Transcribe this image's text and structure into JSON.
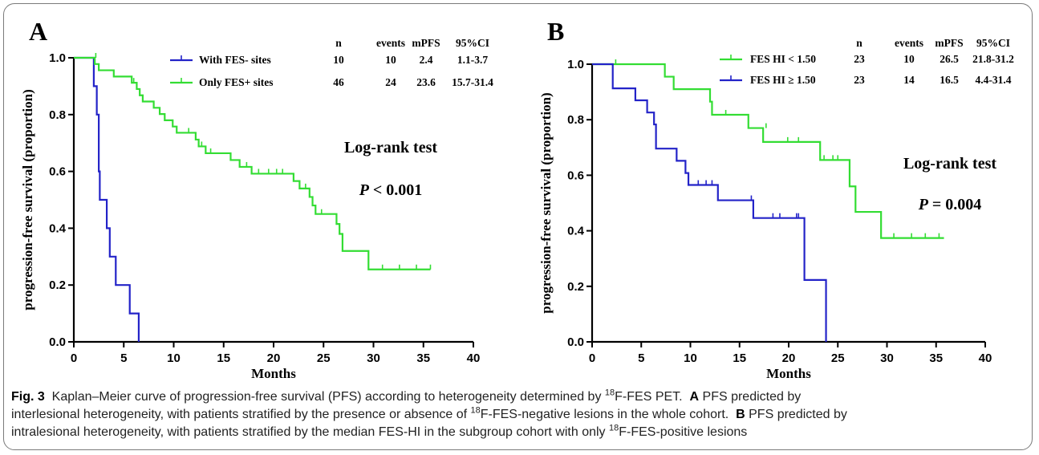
{
  "caption": {
    "fig_label": "Fig. 3",
    "line1_a": "Kaplan–Meier curve of progression-free survival (PFS) according to heterogeneity determined by ",
    "sup_18": "18",
    "line1_b": "F-FES PET.",
    "panel_a_label": "A",
    "line1_c": "PFS predicted by",
    "line2_a": "interlesional heterogeneity, with patients stratified by the presence or absence of ",
    "line2_b": "F-FES-negative lesions in the whole cohort.",
    "panel_b_label": "B",
    "line2_c": "PFS predicted by",
    "line3_a": "intralesional heterogeneity, with patients stratified by the median FES-HI in the subgroup cohort with only ",
    "line3_b": "F-FES-positive lesions"
  },
  "chart_data": [
    {
      "type": "line",
      "panel_label": "A",
      "xlabel": "Months",
      "ylabel": "progression-free survival (proportion)",
      "xlim": [
        0,
        40
      ],
      "ylim": [
        0,
        1.0
      ],
      "x_ticks": [
        "0",
        "5",
        "10",
        "15",
        "20",
        "25",
        "30",
        "35",
        "40"
      ],
      "y_ticks": [
        "0.0",
        "0.2",
        "0.4",
        "0.6",
        "0.8",
        "1.0"
      ],
      "legend_headers": [
        "n",
        "events",
        "mPFS",
        "95%CI"
      ],
      "annotation": "Log-rank test",
      "p_symbol": "P",
      "p_rest": " < 0.001",
      "series": [
        {
          "name": "With FES- sites",
          "color": "#2323c8",
          "stats": [
            "10",
            "10",
            "2.4",
            "1.1-3.7"
          ],
          "steps": [
            [
              0,
              1.0
            ],
            [
              2.0,
              0.9
            ],
            [
              2.3,
              0.8
            ],
            [
              2.5,
              0.6
            ],
            [
              2.6,
              0.5
            ],
            [
              3.3,
              0.4
            ],
            [
              3.6,
              0.3
            ],
            [
              4.2,
              0.2
            ],
            [
              5.6,
              0.1
            ],
            [
              6.5,
              0.0
            ]
          ],
          "end": 6.5,
          "censors": []
        },
        {
          "name": "Only FES+ sites",
          "color": "#33dd33",
          "stats": [
            "46",
            "24",
            "23.6",
            "15.7-31.4"
          ],
          "steps": [
            [
              0,
              1.0
            ],
            [
              2.1,
              0.978
            ],
            [
              2.5,
              0.956
            ],
            [
              4.0,
              0.934
            ],
            [
              5.8,
              0.912
            ],
            [
              6.3,
              0.89
            ],
            [
              6.6,
              0.868
            ],
            [
              6.9,
              0.846
            ],
            [
              8.0,
              0.824
            ],
            [
              8.6,
              0.802
            ],
            [
              9.1,
              0.78
            ],
            [
              9.9,
              0.758
            ],
            [
              10.3,
              0.736
            ],
            [
              12.2,
              0.712
            ],
            [
              12.5,
              0.688
            ],
            [
              13.2,
              0.664
            ],
            [
              15.7,
              0.64
            ],
            [
              16.6,
              0.616
            ],
            [
              17.8,
              0.592
            ],
            [
              22.0,
              0.566
            ],
            [
              22.6,
              0.54
            ],
            [
              23.6,
              0.51
            ],
            [
              23.9,
              0.48
            ],
            [
              24.2,
              0.45
            ],
            [
              26.3,
              0.415
            ],
            [
              26.6,
              0.38
            ],
            [
              26.9,
              0.32
            ],
            [
              29.5,
              0.255
            ]
          ],
          "end": 35.7,
          "censors": [
            [
              2.2,
              1.0
            ],
            [
              6.0,
              0.912
            ],
            [
              11.5,
              0.736
            ],
            [
              12.8,
              0.688
            ],
            [
              13.7,
              0.664
            ],
            [
              17.3,
              0.616
            ],
            [
              18.5,
              0.592
            ],
            [
              19.5,
              0.592
            ],
            [
              20.3,
              0.592
            ],
            [
              20.9,
              0.592
            ],
            [
              23.2,
              0.54
            ],
            [
              24.8,
              0.45
            ],
            [
              30.9,
              0.255
            ],
            [
              32.6,
              0.255
            ],
            [
              34.3,
              0.255
            ],
            [
              35.7,
              0.255
            ]
          ]
        }
      ]
    },
    {
      "type": "line",
      "panel_label": "B",
      "xlabel": "Months",
      "ylabel": "progression-free survival (proportion)",
      "xlim": [
        0,
        40
      ],
      "ylim": [
        0,
        1.0
      ],
      "x_ticks": [
        "0",
        "5",
        "10",
        "15",
        "20",
        "25",
        "30",
        "35",
        "40"
      ],
      "y_ticks": [
        "0.0",
        "0.2",
        "0.4",
        "0.6",
        "0.8",
        "1.0"
      ],
      "legend_headers": [
        "n",
        "events",
        "mPFS",
        "95%CI"
      ],
      "annotation": "Log-rank test",
      "p_symbol": "P",
      "p_rest": " = 0.004",
      "series": [
        {
          "name": "FES HI < 1.50",
          "color": "#33dd33",
          "stats": [
            "23",
            "10",
            "26.5",
            "21.8-31.2"
          ],
          "steps": [
            [
              0,
              1.0
            ],
            [
              7.4,
              0.955
            ],
            [
              8.3,
              0.91
            ],
            [
              12.0,
              0.865
            ],
            [
              12.2,
              0.818
            ],
            [
              15.9,
              0.77
            ],
            [
              17.4,
              0.72
            ],
            [
              23.2,
              0.655
            ],
            [
              26.2,
              0.56
            ],
            [
              26.8,
              0.468
            ],
            [
              29.4,
              0.374
            ]
          ],
          "end": 35.8,
          "censors": [
            [
              2.4,
              1.0
            ],
            [
              13.6,
              0.818
            ],
            [
              17.7,
              0.77
            ],
            [
              19.9,
              0.72
            ],
            [
              21.0,
              0.72
            ],
            [
              23.6,
              0.655
            ],
            [
              24.5,
              0.655
            ],
            [
              25.0,
              0.655
            ],
            [
              30.7,
              0.374
            ],
            [
              32.5,
              0.374
            ],
            [
              33.9,
              0.374
            ],
            [
              35.3,
              0.374
            ]
          ]
        },
        {
          "name": "FES HI ≥ 1.50",
          "color": "#2323c8",
          "stats": [
            "23",
            "14",
            "16.5",
            "4.4-31.4"
          ],
          "steps": [
            [
              0,
              1.0
            ],
            [
              2.1,
              0.913
            ],
            [
              4.4,
              0.87
            ],
            [
              5.6,
              0.826
            ],
            [
              6.3,
              0.783
            ],
            [
              6.5,
              0.696
            ],
            [
              8.6,
              0.652
            ],
            [
              9.5,
              0.608
            ],
            [
              9.8,
              0.565
            ],
            [
              12.8,
              0.51
            ],
            [
              16.4,
              0.446
            ],
            [
              21.6,
              0.223
            ],
            [
              23.8,
              0.0
            ]
          ],
          "end": 23.8,
          "censors": [
            [
              10.8,
              0.565
            ],
            [
              11.6,
              0.565
            ],
            [
              12.2,
              0.565
            ],
            [
              16.2,
              0.51
            ],
            [
              18.4,
              0.446
            ],
            [
              19.1,
              0.446
            ],
            [
              20.8,
              0.446
            ],
            [
              21.0,
              0.446
            ]
          ]
        }
      ]
    }
  ]
}
